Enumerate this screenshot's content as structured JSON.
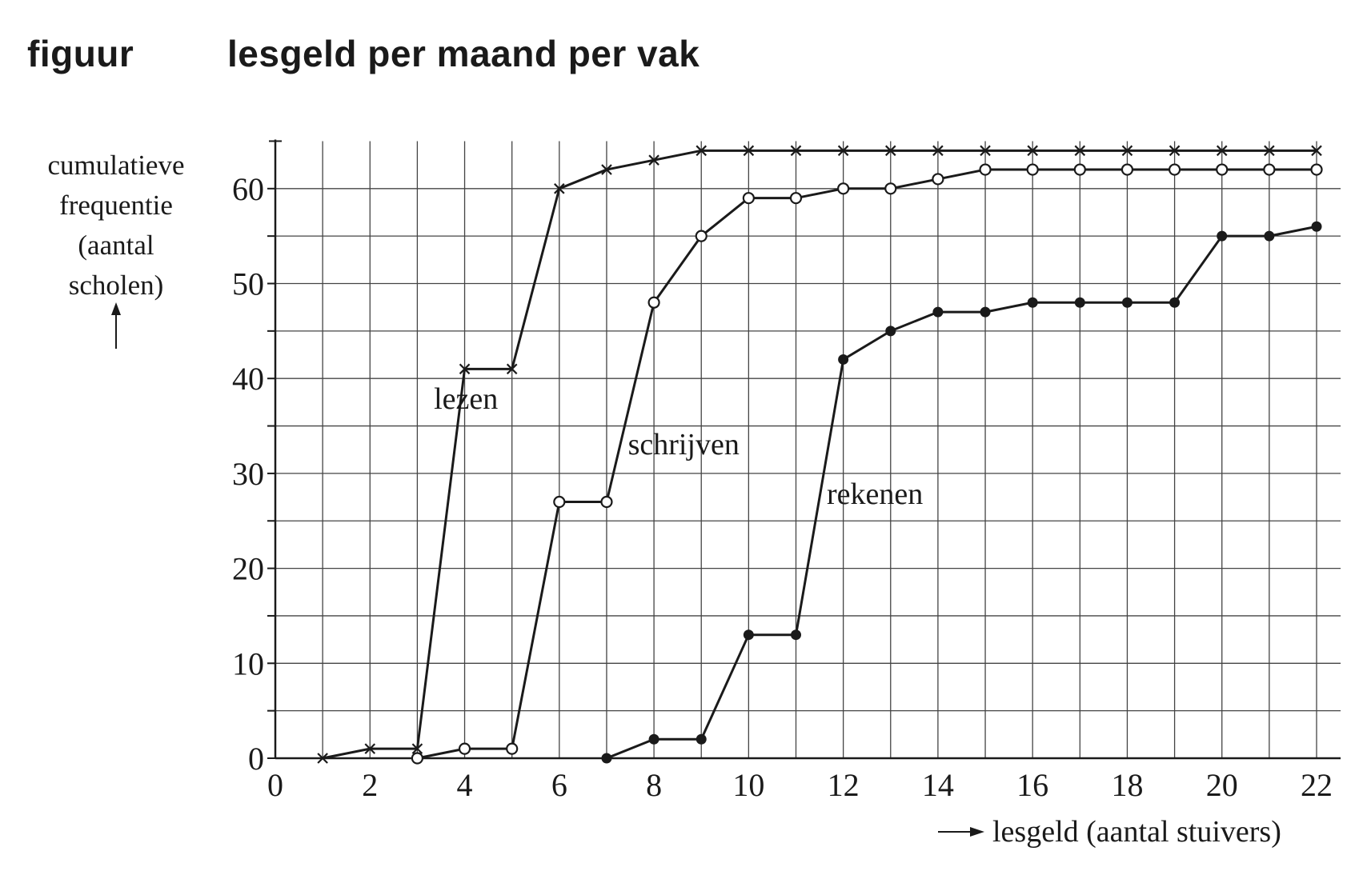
{
  "figure_label": "figuur",
  "title": "lesgeld per maand per vak",
  "chart_data": {
    "type": "line",
    "title": "lesgeld per maand per vak",
    "ylabel_lines": [
      "cumulatieve",
      "frequentie",
      "(aantal",
      "scholen)"
    ],
    "xlabel": "lesgeld (aantal stuivers)",
    "xlim": [
      0,
      22
    ],
    "ylim": [
      0,
      65
    ],
    "x_ticks": [
      0,
      2,
      4,
      6,
      8,
      10,
      12,
      14,
      16,
      18,
      20,
      22
    ],
    "y_ticks": [
      0,
      10,
      20,
      30,
      40,
      50,
      60
    ],
    "grid": true,
    "colors": {
      "ink": "#1a1a1a",
      "grid": "#444444",
      "background": "#ffffff"
    },
    "series": [
      {
        "name": "lezen",
        "marker": "cross",
        "x": [
          1,
          2,
          3,
          4,
          5,
          6,
          7,
          8,
          9,
          10,
          11,
          12,
          13,
          14,
          15,
          16,
          17,
          18,
          19,
          20,
          21,
          22
        ],
        "values": [
          0,
          1,
          1,
          41,
          41,
          60,
          62,
          63,
          64,
          64,
          64,
          64,
          64,
          64,
          64,
          64,
          64,
          64,
          64,
          64,
          64,
          64
        ]
      },
      {
        "name": "schrijven",
        "marker": "open-circle",
        "x": [
          3,
          4,
          5,
          6,
          7,
          8,
          9,
          10,
          11,
          12,
          13,
          14,
          15,
          16,
          17,
          18,
          19,
          20,
          21,
          22
        ],
        "values": [
          0,
          1,
          1,
          27,
          27,
          48,
          55,
          59,
          59,
          60,
          60,
          61,
          62,
          62,
          62,
          62,
          62,
          62,
          62,
          62
        ]
      },
      {
        "name": "rekenen",
        "marker": "filled-circle",
        "x": [
          7,
          8,
          9,
          10,
          11,
          12,
          13,
          14,
          15,
          16,
          17,
          18,
          19,
          20,
          21,
          22
        ],
        "values": [
          0,
          2,
          2,
          13,
          13,
          42,
          45,
          47,
          47,
          48,
          48,
          48,
          48,
          55,
          55,
          56
        ]
      }
    ]
  }
}
